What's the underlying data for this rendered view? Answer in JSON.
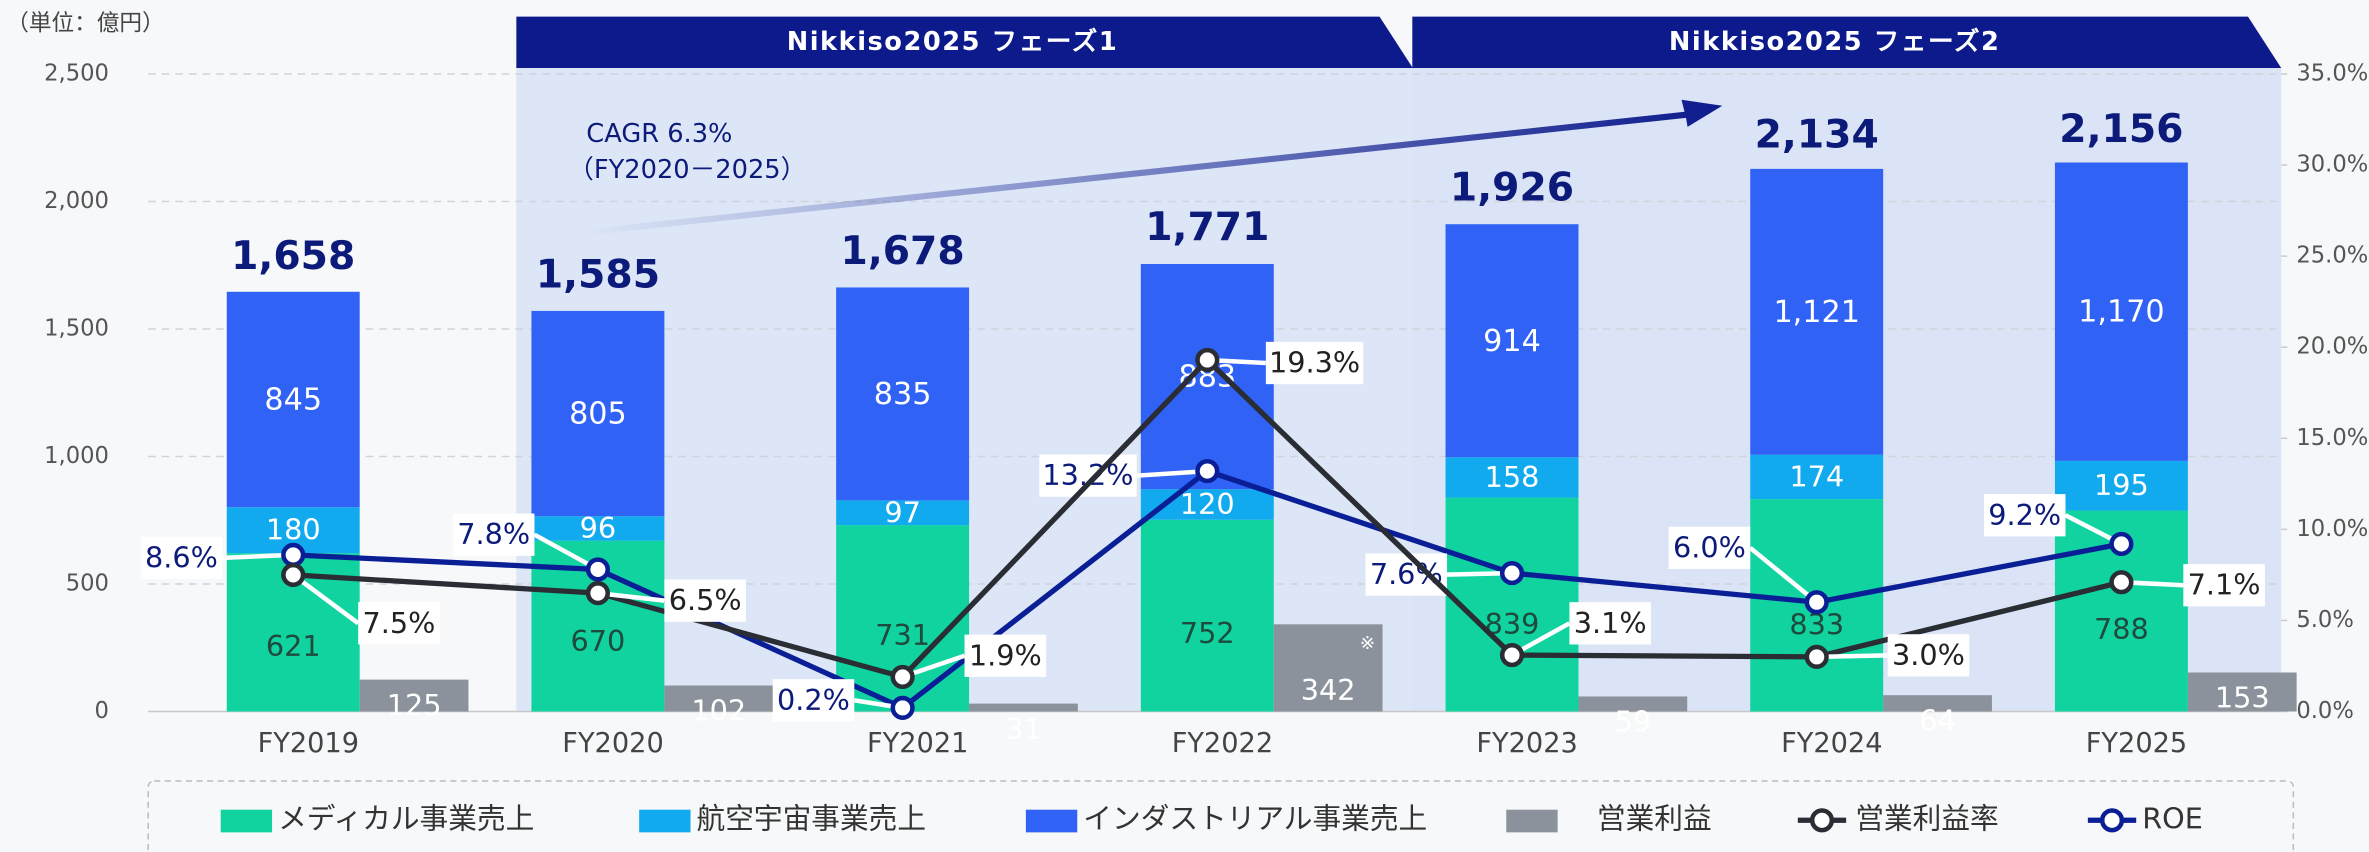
{
  "chart_data": {
    "type": "bar",
    "unit_label": "（単位：億円）",
    "phases": [
      "Nikkiso2025 フェーズ1",
      "Nikkiso2025 フェーズ2"
    ],
    "annotation": {
      "cagr": "CAGR 6.3%",
      "period": "（FY2020－2025）"
    },
    "categories": [
      "FY2019",
      "FY2020",
      "FY2021",
      "FY2022",
      "FY2023",
      "FY2024",
      "FY2025"
    ],
    "series": [
      {
        "name": "メディカル事業売上",
        "type": "stacked-bar",
        "color": "#10d3a0",
        "values": [
          621,
          670,
          731,
          752,
          839,
          833,
          788
        ]
      },
      {
        "name": "航空宇宙事業売上",
        "type": "stacked-bar",
        "color": "#12aaee",
        "values": [
          180,
          96,
          97,
          120,
          158,
          174,
          195
        ]
      },
      {
        "name": "インダストリアル事業売上",
        "type": "stacked-bar",
        "color": "#2f62f5",
        "values": [
          845,
          805,
          835,
          883,
          914,
          1121,
          1170
        ],
        "value_labels": [
          "845",
          "805",
          "835",
          "883",
          "914",
          "1,121",
          "1,170"
        ]
      },
      {
        "name": "営業利益",
        "type": "bar",
        "color": "#8c929c",
        "values": [
          125,
          102,
          31,
          342,
          59,
          64,
          153
        ],
        "note": "※"
      },
      {
        "name": "営業利益率",
        "type": "line",
        "axis": "y2",
        "color": "#2a2d33",
        "values": [
          7.5,
          6.5,
          1.9,
          19.3,
          3.1,
          3.0,
          7.1
        ],
        "value_labels": [
          "7.5%",
          "6.5%",
          "1.9%",
          "19.3%",
          "3.1%",
          "3.0%",
          "7.1%"
        ]
      },
      {
        "name": "ROE",
        "type": "line",
        "axis": "y2",
        "color": "#0a1e96",
        "values": [
          8.6,
          7.8,
          0.2,
          13.2,
          7.6,
          6.0,
          9.2
        ],
        "value_labels": [
          "8.6%",
          "7.8%",
          "0.2%",
          "13.2%",
          "7.6%",
          "6.0%",
          "9.2%"
        ]
      }
    ],
    "totals": {
      "values": [
        1658,
        1585,
        1678,
        1771,
        1926,
        2134,
        2156
      ],
      "value_labels": [
        "1,658",
        "1,585",
        "1,678",
        "1,771",
        "1,926",
        "2,134",
        "2,156"
      ]
    },
    "ylim": [
      0,
      2500
    ],
    "yticks": [
      0,
      500,
      {
        "value": 1000,
        "label": "1,000"
      },
      {
        "value": 1500,
        "label": "1,500"
      },
      {
        "value": 2000,
        "label": "2,000"
      },
      {
        "value": 2500,
        "label": "2,500"
      }
    ],
    "y2lim": [
      0,
      35
    ],
    "y2ticks": [
      {
        "value": 0,
        "label": "0.0%"
      },
      {
        "value": 5,
        "label": "5.0%"
      },
      {
        "value": 10,
        "label": "10.0%"
      },
      {
        "value": 15,
        "label": "15.0%"
      },
      {
        "value": 20,
        "label": "20.0%"
      },
      {
        "value": 25,
        "label": "25.0%"
      },
      {
        "value": 30,
        "label": "30.0%"
      },
      {
        "value": 35,
        "label": "35.0%"
      }
    ],
    "grid": true
  }
}
